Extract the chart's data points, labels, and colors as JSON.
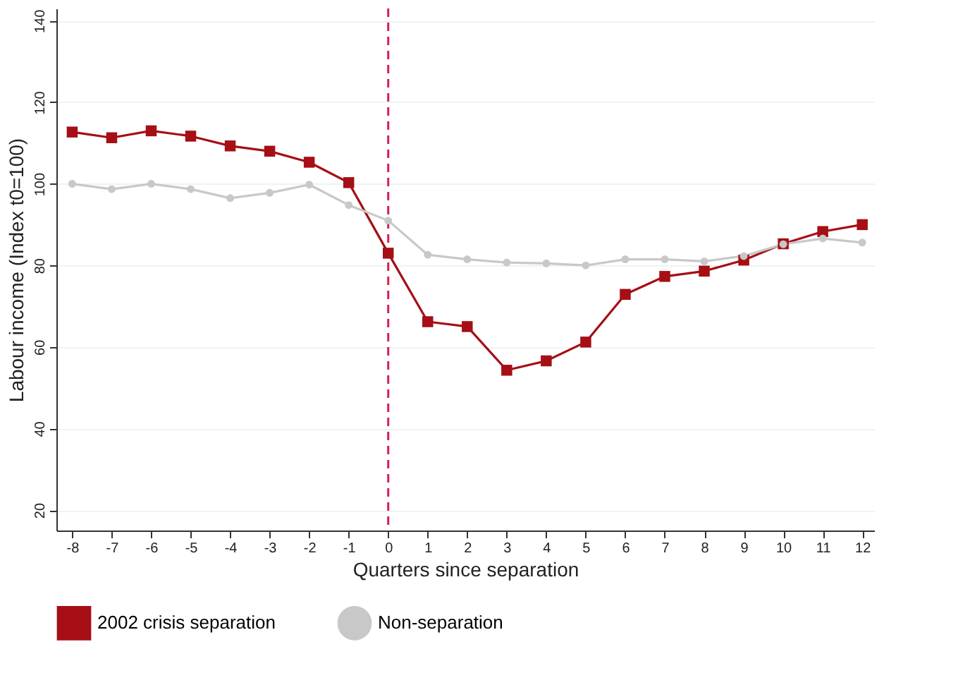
{
  "chart_data": {
    "type": "line",
    "xlabel": "Quarters since separation",
    "ylabel": "Labour income (Index t0=100)",
    "x": [
      -8,
      -7,
      -6,
      -5,
      -4,
      -3,
      -2,
      -1,
      0,
      1,
      2,
      3,
      4,
      5,
      6,
      7,
      8,
      9,
      10,
      11,
      12
    ],
    "xlim": [
      -8.4,
      12.3
    ],
    "xticks": [
      -8,
      -7,
      -6,
      -5,
      -4,
      -3,
      -2,
      -1,
      0,
      1,
      2,
      3,
      4,
      5,
      6,
      7,
      8,
      9,
      10,
      11,
      12
    ],
    "ylim": [
      15,
      143
    ],
    "yticks": [
      20,
      40,
      60,
      80,
      100,
      120,
      140
    ],
    "grid": "y",
    "legend": "bottom",
    "ref_lines": [
      {
        "axis": "x",
        "value": 0,
        "color": "#d6204e",
        "line_style": "dashed"
      }
    ],
    "series": [
      {
        "name": "2002 crisis separation",
        "color": "#a50f15",
        "marker": "square",
        "values": [
          112.7,
          111.3,
          113,
          111.7,
          109.3,
          108,
          105.3,
          100.3,
          83,
          66.2,
          65,
          54.3,
          56.6,
          61.2,
          72.9,
          77.3,
          78.6,
          81.3,
          85.3,
          88.3,
          90
        ]
      },
      {
        "name": "Non-separation",
        "color": "#c8c8c8",
        "marker": "circle",
        "values": [
          100,
          98.7,
          100,
          98.7,
          96.5,
          97.8,
          99.8,
          94.8,
          91,
          82.6,
          81.5,
          80.7,
          80.5,
          80,
          81.5,
          81.5,
          81,
          82.3,
          85.2,
          86.6,
          85.6
        ]
      }
    ]
  }
}
